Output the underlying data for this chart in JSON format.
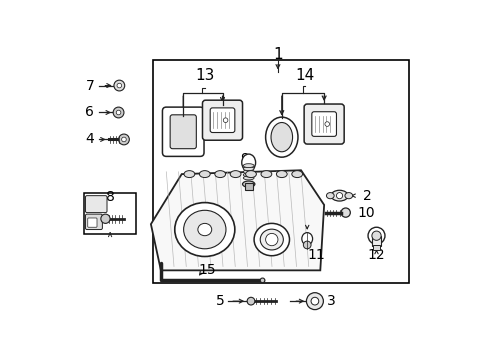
{
  "bg_color": "#ffffff",
  "line_color": "#333333",
  "figw": 4.89,
  "figh": 3.6,
  "xlim": [
    0,
    489
  ],
  "ylim": [
    0,
    360
  ]
}
